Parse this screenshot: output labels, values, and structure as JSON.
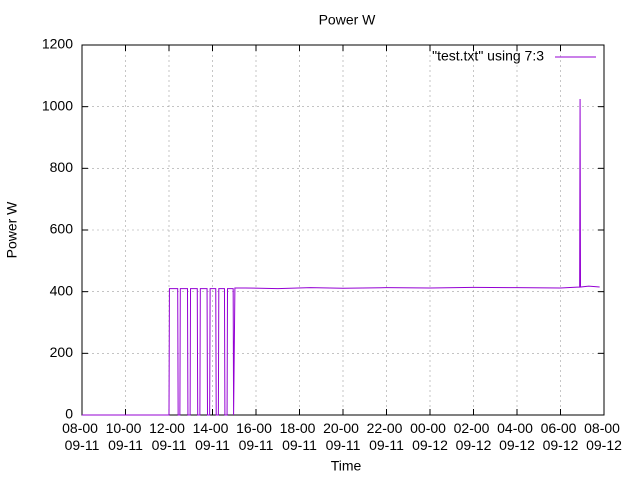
{
  "chart_data": {
    "type": "line",
    "title": "Power W",
    "x_label": "Time",
    "y_label": "Power W",
    "x": [
      0,
      4.0,
      4.02,
      4.4,
      4.42,
      4.5,
      4.52,
      4.85,
      4.87,
      4.97,
      4.99,
      5.3,
      5.32,
      5.42,
      5.44,
      5.75,
      5.77,
      5.87,
      5.89,
      6.15,
      6.17,
      6.27,
      6.29,
      6.55,
      6.57,
      6.67,
      6.69,
      6.95,
      6.97,
      7.03,
      7.5,
      9,
      10.5,
      12,
      14,
      16,
      18,
      20,
      22,
      22.88,
      22.9,
      22.92,
      23.3,
      23.8
    ],
    "series": [
      {
        "name": "\"test.txt\" using 7:3",
        "color": "#9400d3",
        "values": [
          0,
          0,
          410,
          410,
          0,
          0,
          410,
          410,
          0,
          0,
          410,
          410,
          0,
          0,
          410,
          410,
          0,
          0,
          410,
          410,
          0,
          0,
          410,
          410,
          0,
          0,
          410,
          410,
          0,
          412,
          412,
          410,
          413,
          411,
          413,
          412,
          414,
          413,
          412,
          415,
          1025,
          415,
          418,
          415
        ]
      }
    ],
    "xlim": [
      0,
      24
    ],
    "ylim": [
      0,
      1200
    ],
    "xticks": [
      {
        "value": 0,
        "label": "08-00 09-11"
      },
      {
        "value": 2,
        "label": "10-00 09-11"
      },
      {
        "value": 4,
        "label": "12-00 09-11"
      },
      {
        "value": 6,
        "label": "14-00 09-11"
      },
      {
        "value": 8,
        "label": "16-00 09-11"
      },
      {
        "value": 10,
        "label": "18-00 09-11"
      },
      {
        "value": 12,
        "label": "20-00 09-11"
      },
      {
        "value": 14,
        "label": "22-00 09-11"
      },
      {
        "value": 16,
        "label": "00-00 09-12"
      },
      {
        "value": 18,
        "label": "02-00 09-12"
      },
      {
        "value": 20,
        "label": "04-00 09-12"
      },
      {
        "value": 22,
        "label": "06-00 09-12"
      },
      {
        "value": 24,
        "label": "08-00 09-12"
      }
    ],
    "yticks": [
      0,
      200,
      400,
      600,
      800,
      1000,
      1200
    ],
    "grid": true,
    "legend": "top-right"
  }
}
